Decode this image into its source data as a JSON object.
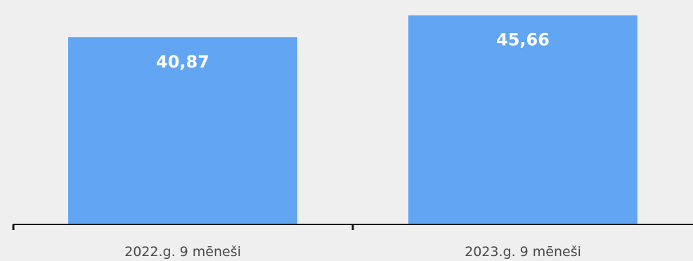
{
  "chart_data": {
    "type": "bar",
    "categories": [
      "2022.g. 9 mēneši",
      "2023.g. 9 mēneši"
    ],
    "values": [
      40.87,
      45.66
    ],
    "value_labels": [
      "40,87",
      "45,66"
    ],
    "title": "",
    "xlabel": "",
    "ylabel": "",
    "ylim": [
      0,
      49
    ],
    "grid": false,
    "legend": "none",
    "colors": {
      "bar": "#62a5f2",
      "value_label": "#ffffff",
      "axis": "#1a1a1a",
      "tick_label": "#4a4a4a",
      "background": "#efefef"
    }
  }
}
